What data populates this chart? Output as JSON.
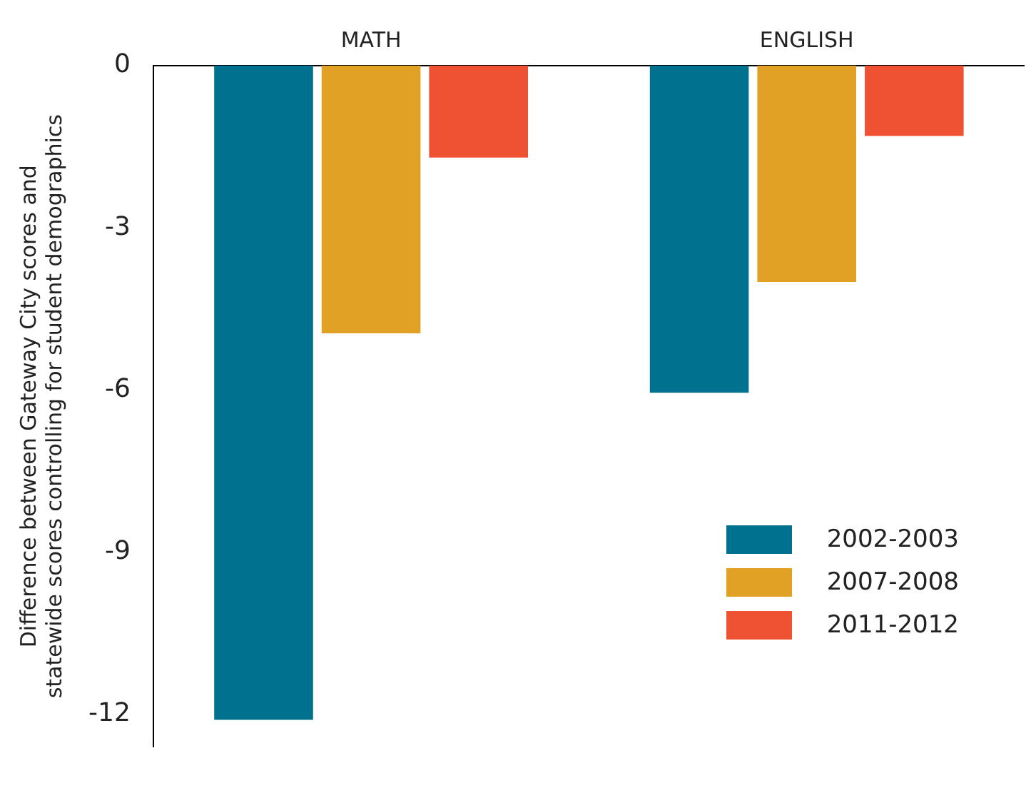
{
  "chart_data": {
    "type": "bar",
    "ylabel": "Difference between Gateway City scores and statewide scores controlling for student demographics",
    "categories": [
      "MATH",
      "ENGLISH"
    ],
    "series": [
      {
        "name": "2002-2003",
        "color": "#00728f",
        "values": [
          -12.1,
          -6.05
        ]
      },
      {
        "name": "2007-2008",
        "color": "#e0a125",
        "values": [
          -4.95,
          -4.0
        ]
      },
      {
        "name": "2011-2012",
        "color": "#ee5233",
        "values": [
          -1.7,
          -1.3
        ]
      }
    ],
    "ylim": [
      -12.6,
      0
    ],
    "yticks": [
      {
        "value": 0,
        "label": "0"
      },
      -3,
      -6,
      -9,
      -12
    ],
    "grid": false,
    "legend": "bottom right"
  }
}
